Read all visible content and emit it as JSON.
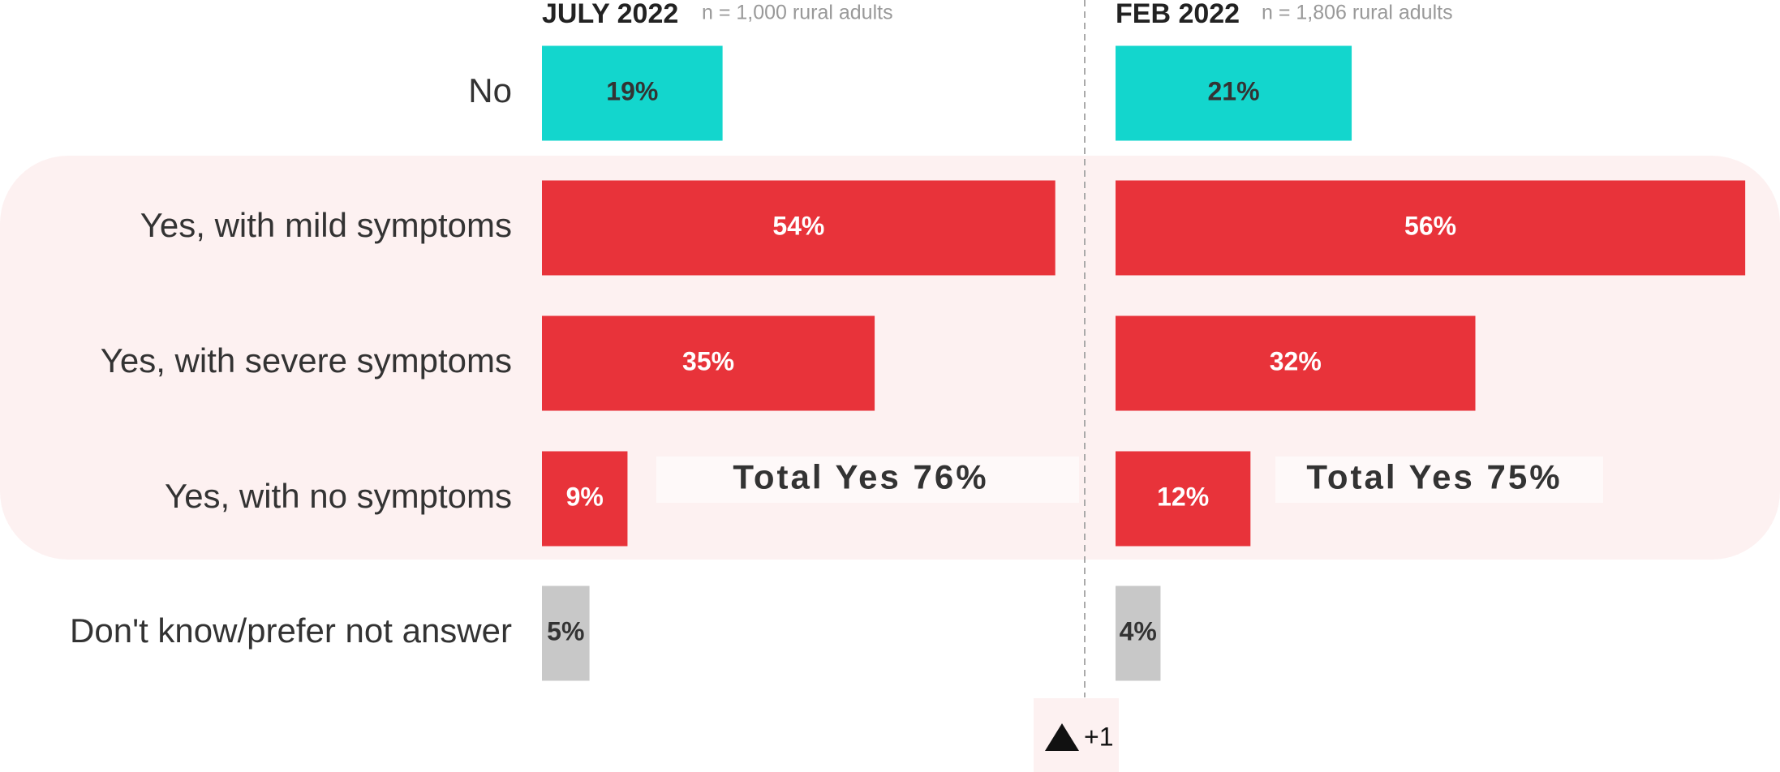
{
  "chart_data": {
    "type": "bar",
    "categories": [
      "No",
      "Yes, with mild symptoms",
      "Yes, with severe symptoms",
      "Yes, with no symptoms",
      "Don't know/prefer not answer"
    ],
    "colors": [
      "#13d6cd",
      "#e8333a",
      "#e8333a",
      "#e8333a",
      "#c8c8c8"
    ],
    "value_label_colors": [
      "#333333",
      "#ffffff",
      "#ffffff",
      "#ffffff",
      "#333333"
    ],
    "series": [
      {
        "name": "JULY 2022",
        "subtitle": "n = 1,000 rural adults",
        "xlim": [
          0,
          60
        ],
        "values": [
          19,
          54,
          35,
          9,
          5
        ],
        "value_labels": [
          "19%",
          "54%",
          "35%",
          "9%",
          "5%"
        ],
        "total_label": "Total Yes 76%"
      },
      {
        "name": "FEB 2022",
        "subtitle": "n = 1,806 rural adults",
        "xlim": [
          0,
          57
        ],
        "values": [
          21,
          56,
          32,
          12,
          4
        ],
        "value_labels": [
          "21%",
          "56%",
          "32%",
          "12%",
          "4%"
        ],
        "total_label": "Total Yes 75%"
      }
    ],
    "annotations": [
      "+1"
    ]
  }
}
